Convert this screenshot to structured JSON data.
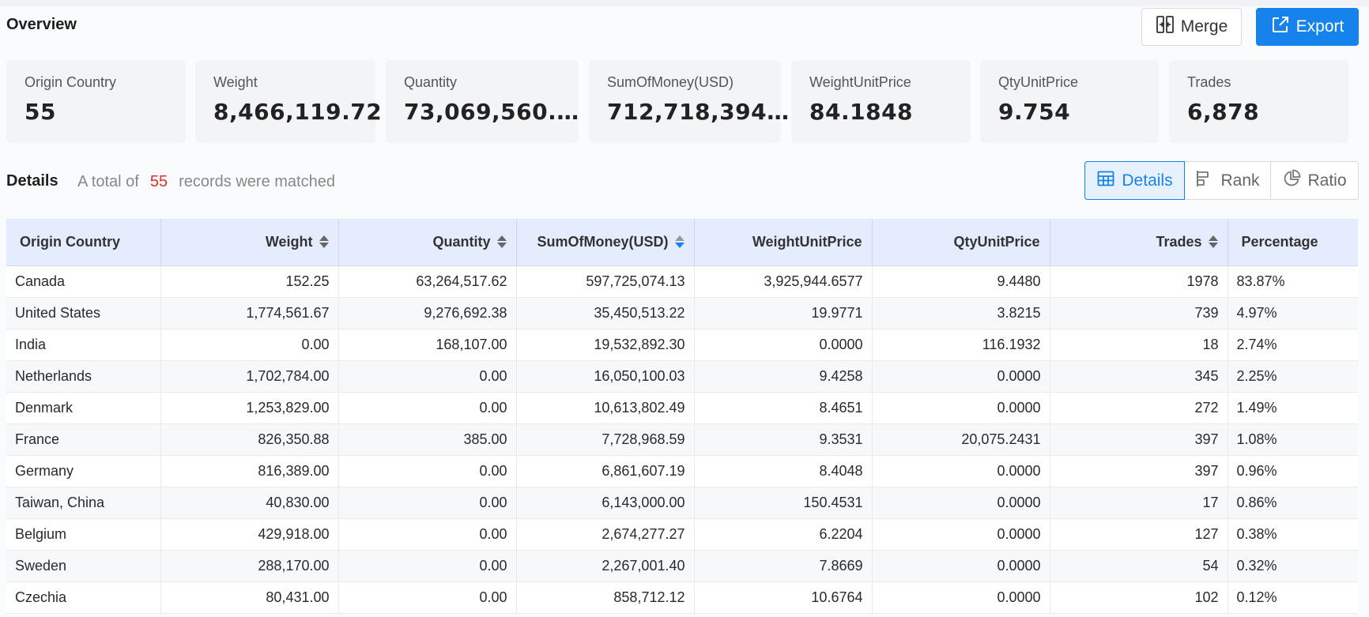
{
  "header": {
    "title": "Overview",
    "merge_label": "Merge",
    "export_label": "Export"
  },
  "cards": [
    {
      "label": "Origin Country",
      "value": "55"
    },
    {
      "label": "Weight",
      "value": "8,466,119.72"
    },
    {
      "label": "Quantity",
      "value": "73,069,560.…"
    },
    {
      "label": "SumOfMoney(USD)",
      "value": "712,718,394…"
    },
    {
      "label": "WeightUnitPrice",
      "value": "84.1848"
    },
    {
      "label": "QtyUnitPrice",
      "value": "9.754"
    },
    {
      "label": "Trades",
      "value": "6,878"
    }
  ],
  "details": {
    "title": "Details",
    "matched_prefix": "A total of",
    "matched_count": "55",
    "matched_suffix": "records were matched",
    "view_tabs": {
      "details": "Details",
      "rank": "Rank",
      "ratio": "Ratio"
    },
    "active_view": "Details"
  },
  "table": {
    "columns": [
      "Origin Country",
      "Weight",
      "Quantity",
      "SumOfMoney(USD)",
      "WeightUnitPrice",
      "QtyUnitPrice",
      "Trades",
      "Percentage"
    ],
    "sorted_column": "SumOfMoney(USD)",
    "sort_direction": "descending",
    "rows": [
      [
        "Canada",
        "152.25",
        "63,264,517.62",
        "597,725,074.13",
        "3,925,944.6577",
        "9.4480",
        "1978",
        "83.87%"
      ],
      [
        "United States",
        "1,774,561.67",
        "9,276,692.38",
        "35,450,513.22",
        "19.9771",
        "3.8215",
        "739",
        "4.97%"
      ],
      [
        "India",
        "0.00",
        "168,107.00",
        "19,532,892.30",
        "0.0000",
        "116.1932",
        "18",
        "2.74%"
      ],
      [
        "Netherlands",
        "1,702,784.00",
        "0.00",
        "16,050,100.03",
        "9.4258",
        "0.0000",
        "345",
        "2.25%"
      ],
      [
        "Denmark",
        "1,253,829.00",
        "0.00",
        "10,613,802.49",
        "8.4651",
        "0.0000",
        "272",
        "1.49%"
      ],
      [
        "France",
        "826,350.88",
        "385.00",
        "7,728,968.59",
        "9.3531",
        "20,075.2431",
        "397",
        "1.08%"
      ],
      [
        "Germany",
        "816,389.00",
        "0.00",
        "6,861,607.19",
        "8.4048",
        "0.0000",
        "397",
        "0.96%"
      ],
      [
        "Taiwan, China",
        "40,830.00",
        "0.00",
        "6,143,000.00",
        "150.4531",
        "0.0000",
        "17",
        "0.86%"
      ],
      [
        "Belgium",
        "429,918.00",
        "0.00",
        "2,674,277.27",
        "6.2204",
        "0.0000",
        "127",
        "0.38%"
      ],
      [
        "Sweden",
        "288,170.00",
        "0.00",
        "2,267,001.40",
        "7.8669",
        "0.0000",
        "54",
        "0.32%"
      ],
      [
        "Czechia",
        "80,431.00",
        "0.00",
        "858,712.12",
        "10.6764",
        "0.0000",
        "102",
        "0.12%"
      ]
    ]
  }
}
